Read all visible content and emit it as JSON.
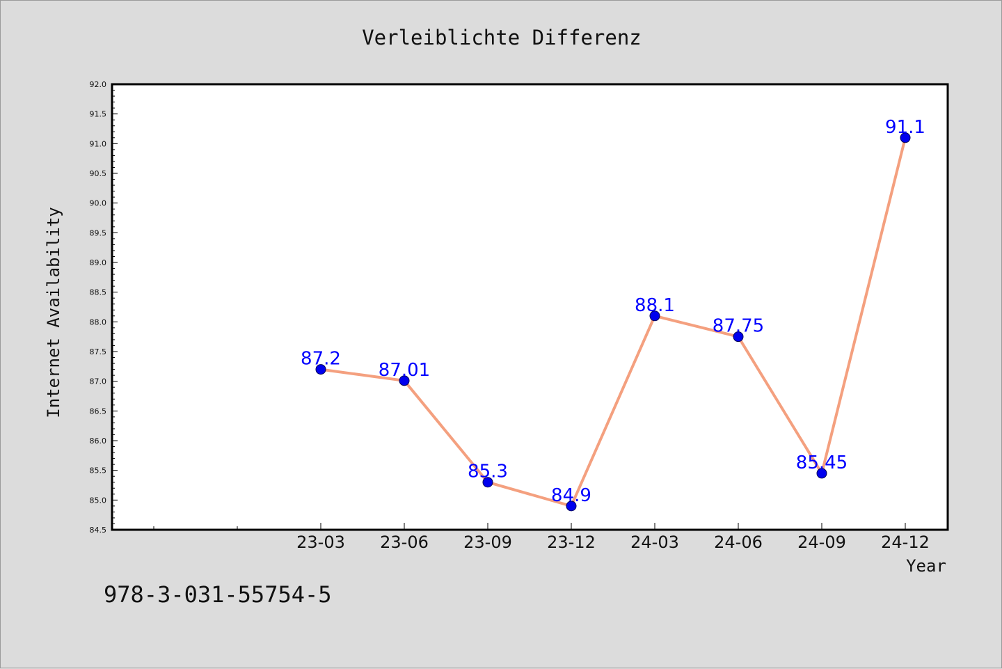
{
  "colors": {
    "background": "#dcdcdc",
    "plot_background": "#ffffff",
    "line": "#f4a07f",
    "marker": "#0000ee",
    "data_label": "#0000ff"
  },
  "footer": {
    "isbn": "978-3-031-55754-5"
  },
  "chart_data": {
    "type": "line",
    "title": "Verleiblichte Differenz",
    "xlabel": "Year",
    "ylabel": "Internet Availability",
    "categories": [
      "23-03",
      "23-06",
      "23-09",
      "23-12",
      "24-03",
      "24-06",
      "24-09",
      "24-12"
    ],
    "series": [
      {
        "values": [
          87.2,
          87.01,
          85.3,
          84.9,
          88.1,
          87.75,
          85.45,
          91.1
        ]
      }
    ],
    "data_labels": [
      "87.2",
      "87.01",
      "85.3",
      "84.9",
      "88.1",
      "87.75",
      "85.45",
      "91.1"
    ],
    "ylim": [
      84.5,
      92.0
    ],
    "yticks": [
      "84.5",
      "85.0",
      "85.5",
      "86.0",
      "86.5",
      "87.0",
      "87.5",
      "88.0",
      "88.5",
      "89.0",
      "89.5",
      "90.0",
      "90.5",
      "91.0",
      "91.5",
      "92.0"
    ],
    "grid": false,
    "legend": "none"
  }
}
